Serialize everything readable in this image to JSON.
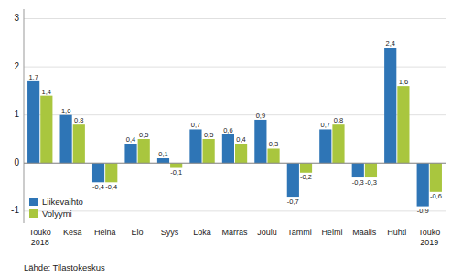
{
  "chart_data": {
    "type": "bar",
    "categories": [
      "Touko\n2018",
      "Kesä",
      "Heinä",
      "Elo",
      "Syys",
      "Loka",
      "Marras",
      "Joulu",
      "Tammi",
      "Helmi",
      "Maalis",
      "Huhti",
      "Touko\n2019"
    ],
    "series": [
      {
        "name": "Liikevaihto",
        "color": "#2E75B6",
        "values": [
          1.7,
          1.0,
          -0.4,
          0.4,
          0.1,
          0.7,
          0.6,
          0.9,
          -0.7,
          0.7,
          -0.3,
          2.4,
          -0.9
        ],
        "value_labels": [
          "1,7",
          "1,0",
          "-0,4",
          "0,4",
          "0,1",
          "0,7",
          "0,6",
          "0,9",
          "-0,7",
          "0,7",
          "-0,3",
          "2,4",
          "-0,9"
        ]
      },
      {
        "name": "Volyymi",
        "color": "#A9C63E",
        "values": [
          1.4,
          0.8,
          -0.4,
          0.5,
          -0.1,
          0.5,
          0.4,
          0.3,
          -0.2,
          0.8,
          -0.3,
          1.6,
          -0.6
        ],
        "value_labels": [
          "1,4",
          "0,8",
          "-0,4",
          "0,5",
          "-0,1",
          "0,5",
          "0,4",
          "0,3",
          "-0,2",
          "0,8",
          "-0,3",
          "1,6",
          "-0,6"
        ]
      }
    ],
    "ylim": [
      -1.25,
      3.2
    ],
    "yticks": [
      -1,
      0,
      1,
      2,
      3
    ],
    "grid": true,
    "legend": "lower left",
    "data_labels": true,
    "annotations": [
      "Lähde: Tilastokeskus"
    ]
  }
}
